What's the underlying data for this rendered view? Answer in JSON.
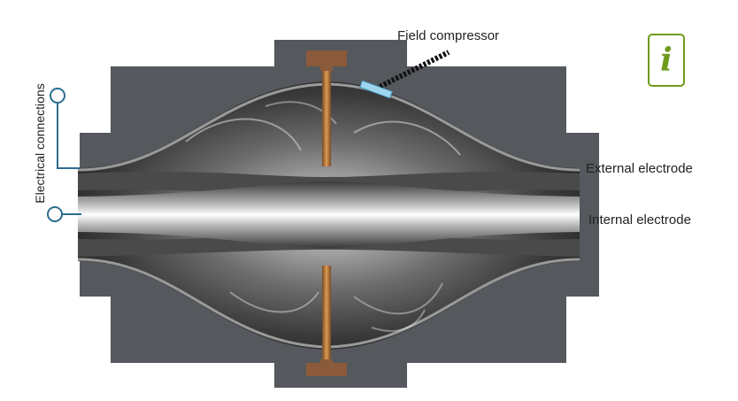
{
  "labels": {
    "field_compressor": "Field compressor",
    "external_electrode": "External electrode",
    "internal_electrode": "Internal electrode",
    "electrical_connections": "Electrical connections"
  },
  "info_button": {
    "glyph": "i",
    "icon": "info-icon",
    "color": "#6f9b1c"
  },
  "colors": {
    "housing": "#55585c",
    "accent_line": "#2b6e8f",
    "compressor": "#9fd6ef",
    "post": "#b87a3d",
    "cap": "#8a5a3a"
  }
}
